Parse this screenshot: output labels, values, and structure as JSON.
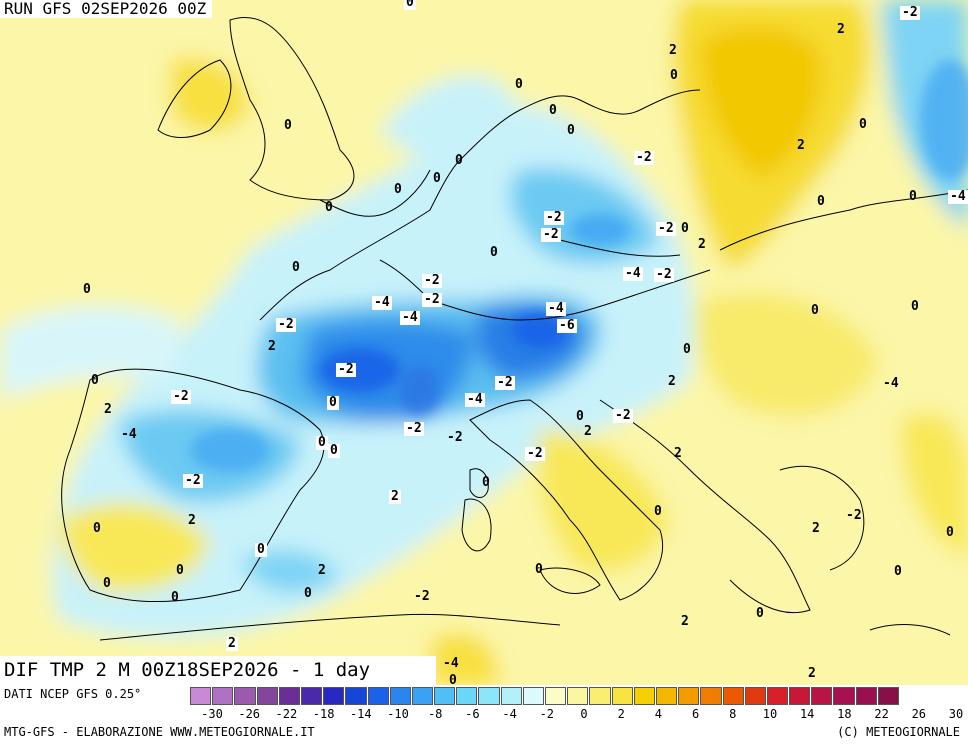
{
  "header": {
    "run_title": "RUN GFS 02SEP2026 00Z"
  },
  "map": {
    "product_title": "DIF TMP 2 M 00Z18SEP2026 - 1 day",
    "labels": [
      {
        "id": "l1",
        "text": "0"
      },
      {
        "id": "l2",
        "text": "-2"
      },
      {
        "id": "l3",
        "text": "2"
      },
      {
        "id": "l4",
        "text": "0"
      },
      {
        "id": "l5",
        "text": "2"
      },
      {
        "id": "l6",
        "text": "0"
      },
      {
        "id": "l7",
        "text": "0"
      },
      {
        "id": "l8",
        "text": "0"
      },
      {
        "id": "l9",
        "text": "0"
      },
      {
        "id": "l10",
        "text": "0"
      },
      {
        "id": "l11",
        "text": "0"
      },
      {
        "id": "l12",
        "text": "0"
      },
      {
        "id": "l13",
        "text": "-2"
      },
      {
        "id": "l14",
        "text": "2"
      },
      {
        "id": "l15",
        "text": "0"
      },
      {
        "id": "l16",
        "text": "0"
      },
      {
        "id": "l17",
        "text": "0"
      },
      {
        "id": "l18",
        "text": "0"
      },
      {
        "id": "l19",
        "text": "-4"
      },
      {
        "id": "l20",
        "text": "-2"
      },
      {
        "id": "l21",
        "text": "-2"
      },
      {
        "id": "l22",
        "text": "-2"
      },
      {
        "id": "l23",
        "text": "0"
      },
      {
        "id": "l24",
        "text": "2"
      },
      {
        "id": "l25",
        "text": "0"
      },
      {
        "id": "l26",
        "text": "0"
      },
      {
        "id": "l27",
        "text": "-2"
      },
      {
        "id": "l28",
        "text": "-2"
      },
      {
        "id": "l29",
        "text": "-4"
      },
      {
        "id": "l30",
        "text": "-4"
      },
      {
        "id": "l31",
        "text": "-2"
      },
      {
        "id": "l32",
        "text": "-4"
      },
      {
        "id": "l33",
        "text": "-6"
      },
      {
        "id": "l34",
        "text": "-2"
      },
      {
        "id": "l35",
        "text": "0"
      },
      {
        "id": "l36",
        "text": "0"
      },
      {
        "id": "l37",
        "text": "-4"
      },
      {
        "id": "l38",
        "text": "0"
      },
      {
        "id": "l39",
        "text": "2"
      },
      {
        "id": "l40",
        "text": "0"
      },
      {
        "id": "l41",
        "text": "-2"
      },
      {
        "id": "l42",
        "text": "0"
      },
      {
        "id": "l43",
        "text": "2"
      },
      {
        "id": "l44",
        "text": "-2"
      },
      {
        "id": "l45",
        "text": "-4"
      },
      {
        "id": "l46",
        "text": "-2"
      },
      {
        "id": "l47",
        "text": "0"
      },
      {
        "id": "l48",
        "text": "2"
      },
      {
        "id": "l49",
        "text": "-4"
      },
      {
        "id": "l50",
        "text": "0"
      },
      {
        "id": "l51",
        "text": "-2"
      },
      {
        "id": "l52",
        "text": "-2"
      },
      {
        "id": "l53",
        "text": "2"
      },
      {
        "id": "l54",
        "text": "-4"
      },
      {
        "id": "l55",
        "text": "-2"
      },
      {
        "id": "l56",
        "text": "0"
      },
      {
        "id": "l57",
        "text": "0"
      },
      {
        "id": "l58",
        "text": "-2"
      },
      {
        "id": "l59",
        "text": "2"
      },
      {
        "id": "l60",
        "text": "-2"
      },
      {
        "id": "l61",
        "text": "0"
      },
      {
        "id": "l62",
        "text": "2"
      },
      {
        "id": "l63",
        "text": "0"
      },
      {
        "id": "l64",
        "text": "2"
      },
      {
        "id": "l65",
        "text": "-2"
      },
      {
        "id": "l66",
        "text": "0"
      },
      {
        "id": "l67",
        "text": "2"
      },
      {
        "id": "l68",
        "text": "0"
      },
      {
        "id": "l69",
        "text": "0"
      },
      {
        "id": "l70",
        "text": "0"
      },
      {
        "id": "l71",
        "text": "2"
      },
      {
        "id": "l72",
        "text": "0"
      },
      {
        "id": "l73",
        "text": "0"
      },
      {
        "id": "l74",
        "text": "0"
      },
      {
        "id": "l75",
        "text": "0"
      },
      {
        "id": "l76",
        "text": "0"
      },
      {
        "id": "l77",
        "text": "-2"
      },
      {
        "id": "l78",
        "text": "0"
      },
      {
        "id": "l79",
        "text": "2"
      },
      {
        "id": "l80",
        "text": "2"
      },
      {
        "id": "l81",
        "text": "-4"
      },
      {
        "id": "l82",
        "text": "2"
      },
      {
        "id": "l83",
        "text": "0"
      },
      {
        "id": "l84",
        "text": "0"
      },
      {
        "id": "l85",
        "text": "0"
      },
      {
        "id": "l86",
        "text": "0"
      }
    ]
  },
  "footer": {
    "data_source": "DATI NCEP GFS 0.25°",
    "credits": "MTG-GFS - ELABORAZIONE WWW.METEOGIORNALE.IT",
    "copyright": "(C) METEOGIORNALE",
    "colorbar": {
      "colors": [
        "#c88ad6",
        "#b070c4",
        "#9a5aae",
        "#84469a",
        "#6a2f96",
        "#4a2aa8",
        "#2a28c2",
        "#1646d8",
        "#1a62e8",
        "#2a86ee",
        "#3aa2f2",
        "#52bef6",
        "#6ad6f8",
        "#8ae6f8",
        "#b2f0fa",
        "#dcfafc",
        "#fbfcc8",
        "#fbf6a0",
        "#faee70",
        "#f8e440",
        "#f4d000",
        "#f2b800",
        "#f29c00",
        "#f07c00",
        "#ec5a00",
        "#e23a10",
        "#d8202a",
        "#c81838",
        "#b81446",
        "#a81050",
        "#981050",
        "#881048"
      ],
      "ticks": [
        "-30",
        "-26",
        "-22",
        "-18",
        "-14",
        "-10",
        "-8",
        "-6",
        "-4",
        "-2",
        "0",
        "2",
        "4",
        "6",
        "8",
        "10",
        "14",
        "18",
        "22",
        "26",
        "30"
      ]
    }
  }
}
